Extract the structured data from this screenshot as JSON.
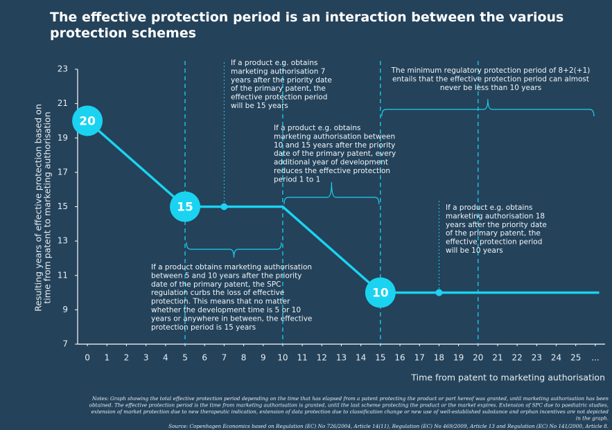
{
  "chart_data": {
    "type": "line",
    "title": "The effective protection period is an interaction between the various protection schemes",
    "ylabel": [
      "Resulting years of effective protection based on",
      "time from patent to marketing authorisation"
    ],
    "xlabel": "Time from patent to marketing authorisation",
    "xlim": [
      -0.5,
      26.5
    ],
    "ylim": [
      7,
      23
    ],
    "xticks": [
      0,
      1,
      2,
      3,
      4,
      5,
      6,
      7,
      8,
      9,
      10,
      11,
      12,
      13,
      14,
      15,
      16,
      17,
      18,
      19,
      20,
      21,
      22,
      23,
      24,
      25,
      {
        "value": 26,
        "label": "..."
      }
    ],
    "yticks": [
      7,
      9,
      11,
      13,
      15,
      17,
      19,
      21,
      23
    ],
    "series": [
      {
        "color": "#1ad3f0",
        "x": [
          0,
          5,
          10,
          15,
          26.2
        ],
        "values": [
          20,
          15,
          15,
          10,
          10
        ]
      }
    ],
    "highlights": [
      {
        "x": 0,
        "y": 20,
        "label": "20"
      },
      {
        "x": 5,
        "y": 15,
        "label": "15"
      },
      {
        "x": 15,
        "y": 10,
        "label": "10"
      }
    ],
    "markers": [
      {
        "x": 7,
        "y": 15
      },
      {
        "x": 18,
        "y": 10
      }
    ],
    "reference_lines": [
      5,
      10,
      15,
      20
    ],
    "brackets": [
      {
        "from": 5,
        "to": 10
      },
      {
        "from": 10,
        "to": 15
      },
      {
        "from": 15,
        "to": 26
      }
    ],
    "annotations": [
      {
        "lines": [
          "If a product e.g. obtains",
          "marketing authorisation 7",
          "years after the priority date",
          "of the primary patent, the",
          "effective protection period",
          "will be 15 years"
        ]
      },
      {
        "lines": [
          "If a product e.g. obtains",
          "marketing authorisation between",
          "10 and 15 years after the priority",
          "date of the primary patent, every",
          "additional year of development",
          "reduces the effective protection",
          "period 1 to 1"
        ]
      },
      {
        "lines": [
          "The minimum regulatory protection period of 8+2(+1)",
          "entails that the effective protection period can almost",
          "never be less than 10 years"
        ]
      },
      {
        "lines": [
          "If a product e.g. obtains",
          "marketing authorisation 18",
          "years after the priority date",
          "of the primary patent, the",
          "effective protection period",
          "will be 10 years"
        ]
      },
      {
        "lines": [
          "If a product obtains marketing authorisation",
          "between 5 and 10 years after the priority",
          "date of the primary patent, the SPC",
          "regulation curbs the loss of effective",
          "protection. This means that no matter",
          "whether the development time is 5 or 10",
          "years or anywhere in between, the effective",
          "protection period is 15 years"
        ]
      }
    ],
    "notes": [
      "Notes: Graph showing the total effective protection period depending on the time that has elapsed from a patent protecting the product or part hereof was granted, until marketing authorisation has been",
      "obtained. The effective protection period is the time from marketing authorisation is granted, until the last scheme protecting the product or the market expires. Extension of SPC due to paediatric studies,",
      "extension of market protection due to new therapeutic indication, extension of data protection due to classification change or new use of well-established substance and orphan incentives are not depicted",
      "in the graph."
    ],
    "source": "Source: Copenhagen Economics based on Regulation (EC) No 726/2004, Article 14(11), Regulation (EC) No 469/2009, Article 13 and Regulation (EC) No 141/2000, Article 8."
  }
}
